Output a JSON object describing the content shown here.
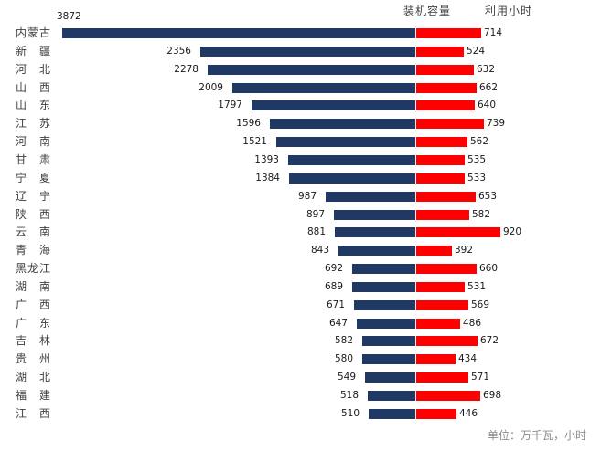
{
  "legend": {
    "capacity": "装机容量",
    "hours": "利用小时"
  },
  "footer": {
    "unit_note": "单位：万千瓦，小时"
  },
  "colors": {
    "capacity_bar": "#1F3864",
    "hours_bar": "#FE0000",
    "category_text": "#404040",
    "value_text": "#1a1a1a",
    "footer_text": "#8C8C8C"
  },
  "chart_data": {
    "type": "bar",
    "orientation": "diverging-horizontal",
    "title": "",
    "unit_note": "单位：万千瓦，小时",
    "legend_position": "top-right",
    "grid": false,
    "categories": [
      "内蒙古",
      "新疆",
      "河北",
      "山西",
      "山东",
      "江苏",
      "河南",
      "甘肃",
      "宁夏",
      "辽宁",
      "陕西",
      "云南",
      "青海",
      "黑龙江",
      "湖南",
      "广西",
      "广东",
      "吉林",
      "贵州",
      "湖北",
      "福建",
      "江西"
    ],
    "series": [
      {
        "name": "装机容量",
        "side": "left",
        "color": "#1F3864",
        "values": [
          3872,
          2356,
          2278,
          2009,
          1797,
          1596,
          1521,
          1393,
          1384,
          987,
          897,
          881,
          843,
          692,
          689,
          671,
          647,
          582,
          580,
          549,
          518,
          510
        ]
      },
      {
        "name": "利用小时",
        "side": "right",
        "color": "#FE0000",
        "values": [
          714,
          524,
          632,
          662,
          640,
          739,
          562,
          535,
          533,
          653,
          582,
          920,
          392,
          660,
          531,
          569,
          486,
          672,
          434,
          571,
          698,
          446
        ]
      }
    ],
    "value_axis_max_left": 3872,
    "value_axis_max_right": 920
  }
}
